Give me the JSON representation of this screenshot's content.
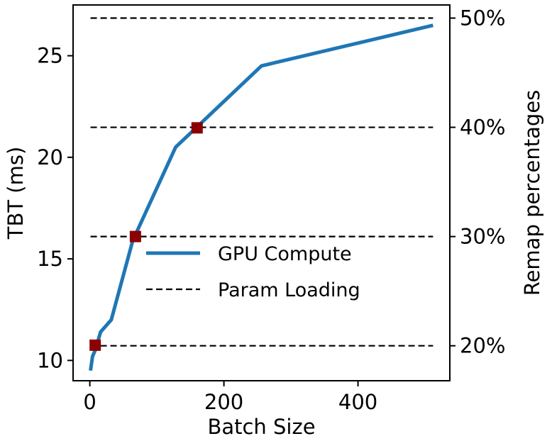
{
  "chart_data": {
    "type": "line",
    "xlabel": "Batch Size",
    "ylabel": "TBT (ms)",
    "y2label": "Remap percentages",
    "xlim": [
      -25,
      537
    ],
    "ylim": [
      9.0,
      27.5
    ],
    "y2lim": [
      16.8,
      51.2
    ],
    "x_ticks": [
      0,
      200,
      400
    ],
    "x_tick_labels": [
      "0",
      "200",
      "400"
    ],
    "y_ticks": [
      10,
      15,
      20,
      25
    ],
    "y_tick_labels": [
      "10",
      "15",
      "20",
      "25"
    ],
    "y2_ticks": [
      20,
      30,
      40,
      50
    ],
    "y2_tick_labels": [
      "20%",
      "30%",
      "40%",
      "50%"
    ],
    "grid": false,
    "legend_position": "center-right",
    "series": [
      {
        "name": "GPU Compute",
        "color": "#1f77b4",
        "style": "solid",
        "x": [
          1,
          4,
          8,
          16,
          32,
          64,
          128,
          256,
          512
        ],
        "y": [
          9.5,
          10.2,
          10.5,
          11.4,
          12.0,
          15.9,
          20.5,
          24.5,
          26.5
        ]
      },
      {
        "name": "Param Loading",
        "color": "#000000",
        "style": "dashed",
        "axis": "right",
        "levels": [
          20,
          30,
          40,
          50
        ]
      }
    ],
    "markers": {
      "color": "#8b0000",
      "shape": "square",
      "x": [
        8,
        68,
        160
      ],
      "y": [
        10.75,
        16.1,
        21.45
      ]
    }
  }
}
